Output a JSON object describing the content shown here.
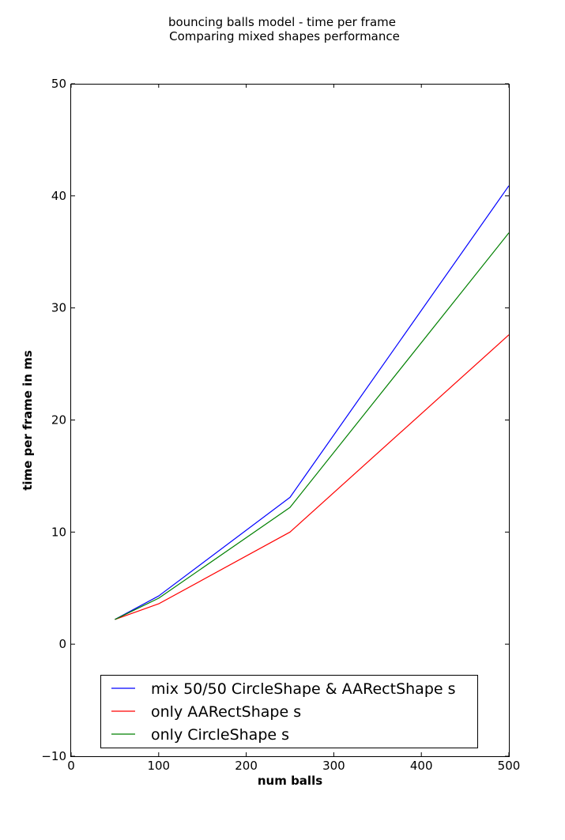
{
  "chart_data": {
    "type": "line",
    "title": "bouncing balls model - time per frame",
    "subtitle": "Comparing mixed shapes performance",
    "xlabel": "num balls",
    "ylabel": "time per frame in ms",
    "xlim": [
      0,
      500
    ],
    "ylim": [
      -10,
      50
    ],
    "xticks": [
      0,
      100,
      200,
      300,
      400,
      500
    ],
    "yticks": [
      -10,
      0,
      10,
      20,
      30,
      40,
      50
    ],
    "x": [
      50,
      100,
      250,
      500
    ],
    "series": [
      {
        "name": "mix 50/50 CircleShape & AARectShape s",
        "color": "#0000ff",
        "values": [
          2.2,
          4.3,
          13.1,
          40.9
        ]
      },
      {
        "name": "only AARectShape s",
        "color": "#ff0000",
        "values": [
          2.2,
          3.6,
          10.0,
          27.6
        ]
      },
      {
        "name": "only CircleShape s",
        "color": "#008000",
        "values": [
          2.2,
          4.1,
          12.2,
          36.7
        ]
      }
    ],
    "grid": false,
    "legend_position": "lower-center"
  }
}
